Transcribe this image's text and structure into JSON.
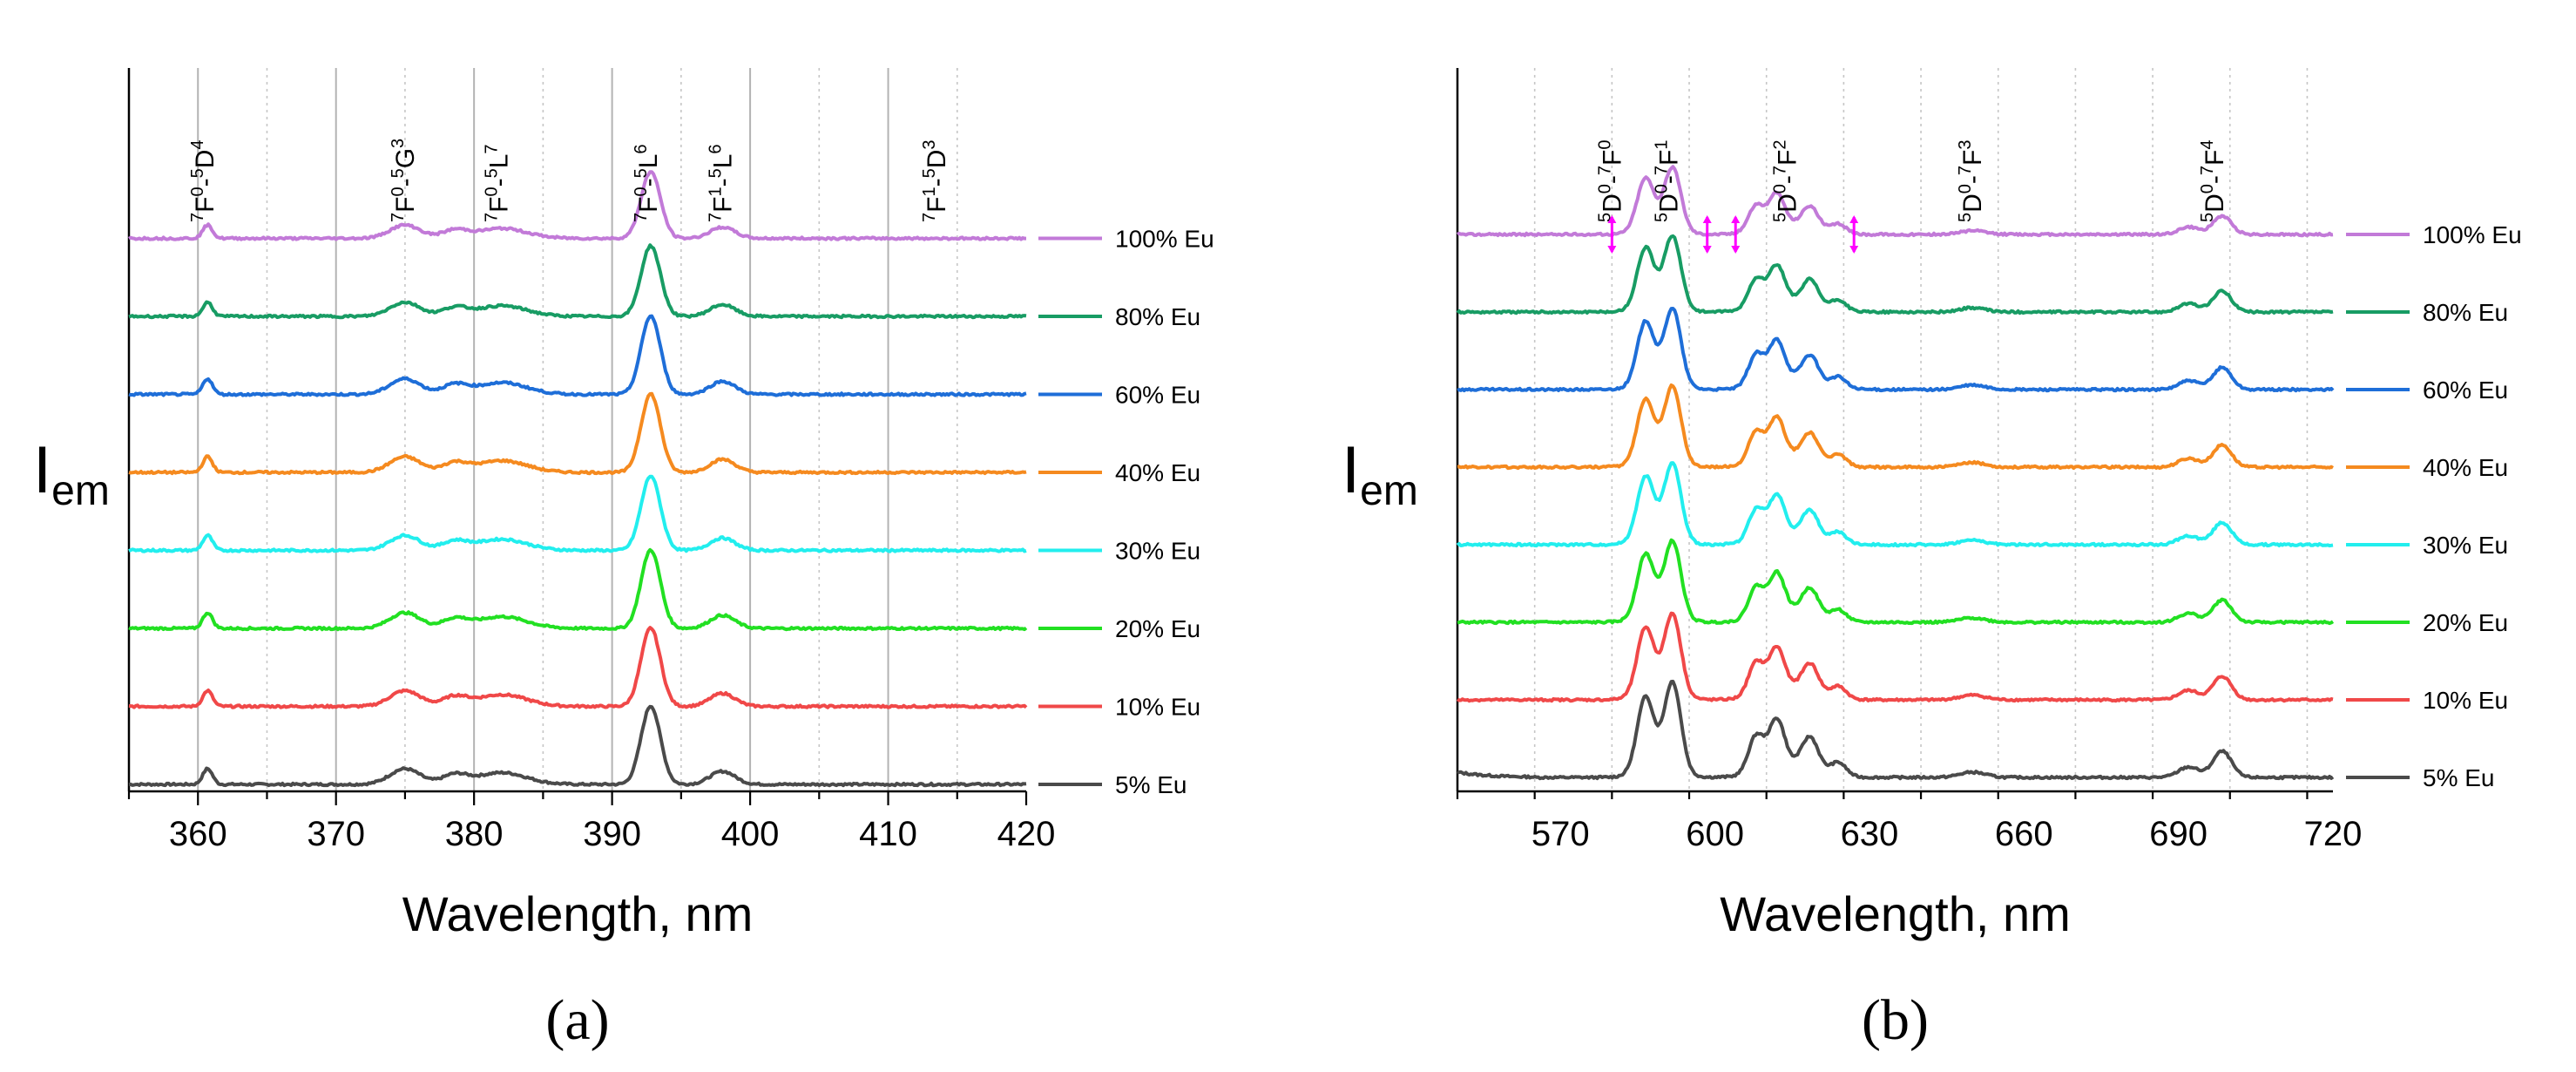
{
  "chart_data": [
    {
      "type": "line",
      "panel_label": "(a)",
      "xlabel": "Wavelength, nm",
      "ylabel": "I",
      "ylabel_subscript": "em",
      "xlim": [
        355,
        420
      ],
      "x_ticks": [
        360,
        370,
        380,
        390,
        400,
        410,
        420
      ],
      "grid": "vertical solid at major ticks, dotted at minor ticks",
      "legend_placement": "right",
      "transitions": [
        {
          "x": 360.5,
          "parts": [
            [
              "7",
              "F"
            ],
            [
              "0",
              "-"
            ],
            [
              "5",
              "D"
            ],
            [
              "4",
              ""
            ]
          ]
        },
        {
          "x": 375.0,
          "parts": [
            [
              "7",
              "F"
            ],
            [
              "0",
              "-"
            ],
            [
              "5",
              "G"
            ],
            [
              "3",
              ""
            ]
          ]
        },
        {
          "x": 381.8,
          "parts": [
            [
              "7",
              "F"
            ],
            [
              "0",
              "-"
            ],
            [
              "5",
              "L"
            ],
            [
              "7",
              ""
            ]
          ]
        },
        {
          "x": 392.6,
          "parts": [
            [
              "7",
              "F"
            ],
            [
              "0",
              "-"
            ],
            [
              "5",
              "L"
            ],
            [
              "6",
              ""
            ]
          ]
        },
        {
          "x": 398.0,
          "parts": [
            [
              "7",
              "F"
            ],
            [
              "1",
              "-"
            ],
            [
              "5",
              "L"
            ],
            [
              "6",
              ""
            ]
          ]
        },
        {
          "x": 413.5,
          "parts": [
            [
              "7",
              "F"
            ],
            [
              "1",
              "-"
            ],
            [
              "5",
              "D"
            ],
            [
              "3",
              ""
            ]
          ]
        }
      ],
      "peaks": [
        {
          "center": 360.7,
          "width": 0.35,
          "height": 0.06
        },
        {
          "center": 375.0,
          "width": 1.1,
          "height": 0.06
        },
        {
          "center": 378.6,
          "width": 0.9,
          "height": 0.035
        },
        {
          "center": 382.0,
          "width": 1.8,
          "height": 0.045
        },
        {
          "center": 392.8,
          "width": 0.7,
          "height": 0.3
        },
        {
          "center": 398.0,
          "width": 0.9,
          "height": 0.05
        }
      ],
      "series": [
        {
          "name": "5% Eu",
          "color": "#4a4a4a",
          "peak_scale": 1.0
        },
        {
          "name": "10% Eu",
          "color": "#f04848",
          "peak_scale": 1.0
        },
        {
          "name": "20% Eu",
          "color": "#22e022",
          "peak_scale": 1.0
        },
        {
          "name": "30% Eu",
          "color": "#22eeee",
          "peak_scale": 0.95
        },
        {
          "name": "40% Eu",
          "color": "#f58a1f",
          "peak_scale": 1.0
        },
        {
          "name": "60% Eu",
          "color": "#1e6ed8",
          "peak_scale": 1.0
        },
        {
          "name": "80% Eu",
          "color": "#189c64",
          "peak_scale": 0.9
        },
        {
          "name": "100% Eu",
          "color": "#c27ad8",
          "peak_scale": 0.85
        }
      ]
    },
    {
      "type": "line",
      "panel_label": "(b)",
      "xlabel": "Wavelength, nm",
      "ylabel": "I",
      "ylabel_subscript": "em",
      "xlim": [
        550,
        720
      ],
      "x_ticks": [
        570,
        600,
        630,
        660,
        690,
        720
      ],
      "grid": "vertical solid at major ticks, dotted at minor ticks",
      "legend_placement": "right",
      "transitions": [
        {
          "x": 580.0,
          "parts": [
            [
              "5",
              "D"
            ],
            [
              "0",
              "-"
            ],
            [
              "7",
              "F"
            ],
            [
              "0",
              ""
            ]
          ]
        },
        {
          "x": 591.0,
          "parts": [
            [
              "5",
              "D"
            ],
            [
              "0",
              "-"
            ],
            [
              "7",
              "F"
            ],
            [
              "1",
              ""
            ]
          ]
        },
        {
          "x": 614.0,
          "parts": [
            [
              "5",
              "D"
            ],
            [
              "0",
              "-"
            ],
            [
              "7",
              "F"
            ],
            [
              "2",
              ""
            ]
          ]
        },
        {
          "x": 650.0,
          "parts": [
            [
              "5",
              "D"
            ],
            [
              "0",
              "-"
            ],
            [
              "7",
              "F"
            ],
            [
              "3",
              ""
            ]
          ]
        },
        {
          "x": 697.0,
          "parts": [
            [
              "5",
              "D"
            ],
            [
              "0",
              "-"
            ],
            [
              "7",
              "F"
            ],
            [
              "4",
              ""
            ]
          ]
        }
      ],
      "peaks": [
        {
          "center": 586.5,
          "width": 1.6,
          "height": 0.27
        },
        {
          "center": 591.8,
          "width": 1.6,
          "height": 0.33
        },
        {
          "center": 589.0,
          "width": 3.5,
          "height": 0.05
        },
        {
          "center": 608.0,
          "width": 1.5,
          "height": 0.14
        },
        {
          "center": 612.0,
          "width": 1.5,
          "height": 0.18
        },
        {
          "center": 618.5,
          "width": 1.6,
          "height": 0.12
        },
        {
          "center": 614.5,
          "width": 5.0,
          "height": 0.05
        },
        {
          "center": 624.0,
          "width": 1.5,
          "height": 0.05
        },
        {
          "center": 650.0,
          "width": 2.5,
          "height": 0.02
        },
        {
          "center": 692.0,
          "width": 2.0,
          "height": 0.04
        },
        {
          "center": 698.5,
          "width": 1.8,
          "height": 0.1
        }
      ],
      "series": [
        {
          "name": "5% Eu",
          "color": "#4a4a4a",
          "peak_scale": 1.0
        },
        {
          "name": "10% Eu",
          "color": "#f04848",
          "peak_scale": 0.9
        },
        {
          "name": "20% Eu",
          "color": "#22e022",
          "peak_scale": 0.85
        },
        {
          "name": "30% Eu",
          "color": "#22eeee",
          "peak_scale": 0.85
        },
        {
          "name": "40% Eu",
          "color": "#f58a1f",
          "peak_scale": 0.85
        },
        {
          "name": "60% Eu",
          "color": "#1e6ed8",
          "peak_scale": 0.85
        },
        {
          "name": "80% Eu",
          "color": "#189c64",
          "peak_scale": 0.8
        },
        {
          "name": "100% Eu",
          "color": "#c27ad8",
          "peak_scale": 0.7
        }
      ],
      "magenta_markers_x": [
        580,
        598.5,
        604,
        627
      ]
    }
  ]
}
